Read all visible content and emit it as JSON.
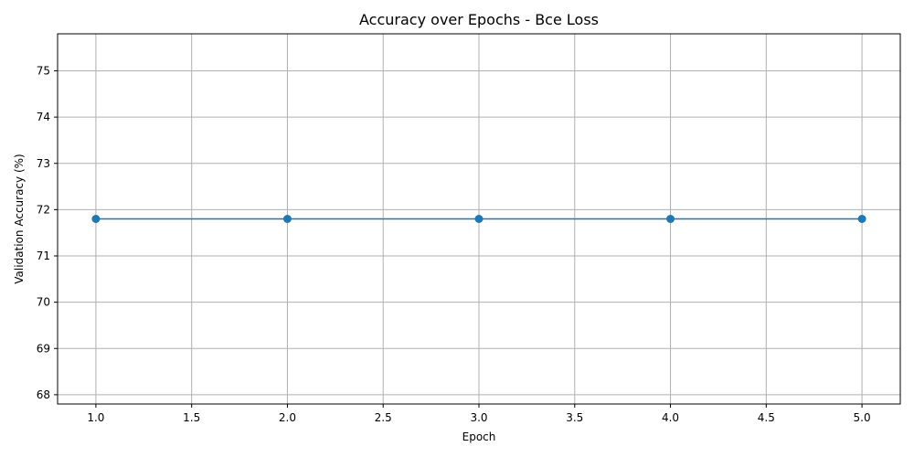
{
  "chart_data": {
    "type": "line",
    "title": "Accuracy over Epochs - Bce Loss",
    "xlabel": "Epoch",
    "ylabel": "Validation Accuracy (%)",
    "xlim": [
      0.8,
      5.2
    ],
    "ylim": [
      67.8,
      75.8
    ],
    "x_ticks": [
      1.0,
      1.5,
      2.0,
      2.5,
      3.0,
      3.5,
      4.0,
      4.5,
      5.0
    ],
    "x_tick_labels": [
      "1.0",
      "1.5",
      "2.0",
      "2.5",
      "3.0",
      "3.5",
      "4.0",
      "4.5",
      "5.0"
    ],
    "y_ticks": [
      68,
      69,
      70,
      71,
      72,
      73,
      74,
      75
    ],
    "y_tick_labels": [
      "68",
      "69",
      "70",
      "71",
      "72",
      "73",
      "74",
      "75"
    ],
    "grid": true,
    "x": [
      1,
      2,
      3,
      4,
      5
    ],
    "series": [
      {
        "values": [
          71.8,
          71.8,
          71.8,
          71.8,
          71.8
        ],
        "color": "#1f77b4",
        "line_color": "#1f77b4",
        "marker": "circle"
      }
    ],
    "grid_color": "#b0b0b0"
  }
}
